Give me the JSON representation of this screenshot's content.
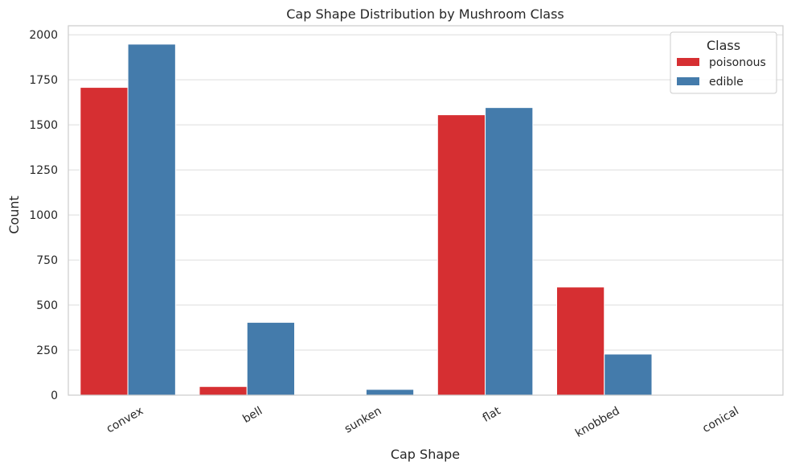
{
  "chart_data": {
    "type": "bar",
    "title": "Cap Shape Distribution by Mushroom Class",
    "xlabel": "Cap Shape",
    "ylabel": "Count",
    "categories": [
      "convex",
      "bell",
      "sunken",
      "flat",
      "knobbed",
      "conical"
    ],
    "series": [
      {
        "name": "poisonous",
        "color": "#d62f32",
        "values": [
          1708,
          48,
          0,
          1556,
          600,
          1
        ]
      },
      {
        "name": "edible",
        "color": "#447bab",
        "values": [
          1948,
          404,
          32,
          1596,
          228,
          0
        ]
      }
    ],
    "ylim": [
      0,
      2050
    ],
    "yticks": [
      0,
      250,
      500,
      750,
      1000,
      1250,
      1500,
      1750,
      2000
    ],
    "grid": true,
    "legend": {
      "title": "Class",
      "placement": "top-right"
    }
  }
}
